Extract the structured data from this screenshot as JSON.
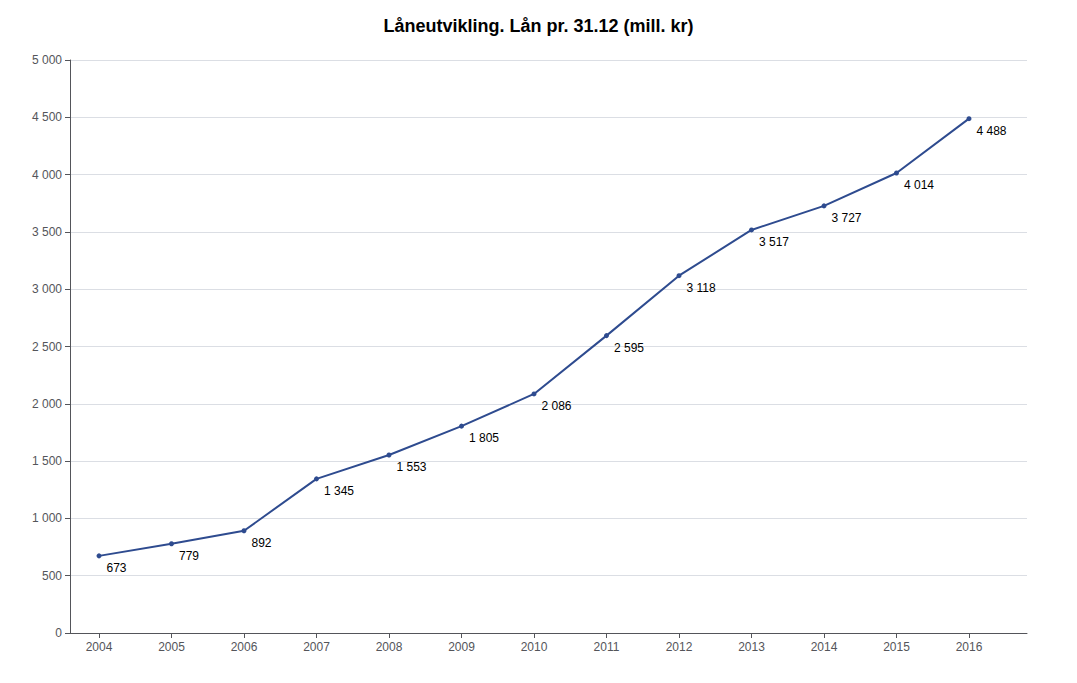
{
  "chart_data": {
    "type": "line",
    "title": "Låneutvikling. Lån pr. 31.12 (mill. kr)",
    "x": [
      2004,
      2005,
      2006,
      2007,
      2008,
      2009,
      2010,
      2011,
      2012,
      2013,
      2014,
      2015,
      2016
    ],
    "values": [
      673,
      779,
      892,
      1345,
      1553,
      1805,
      2086,
      2595,
      3118,
      3517,
      3727,
      4014,
      4488
    ],
    "value_labels": [
      "673",
      "779",
      "892",
      "1 345",
      "1 553",
      "1 805",
      "2 086",
      "2 595",
      "3 118",
      "3 517",
      "3 727",
      "4 014",
      "4 488"
    ],
    "data_labels": true,
    "color": "#2E4B8F",
    "xlim": [
      2003.6,
      2016.8
    ],
    "xticks": [
      2004,
      2005,
      2006,
      2007,
      2008,
      2009,
      2010,
      2011,
      2012,
      2013,
      2014,
      2015,
      2016
    ],
    "ylim": [
      0,
      5000
    ],
    "yticks": [
      0,
      500,
      {
        "value": 1000,
        "label": "1 000"
      },
      {
        "value": 1500,
        "label": "1 500"
      },
      {
        "value": 2000,
        "label": "2 000"
      },
      {
        "value": 2500,
        "label": "2 500"
      },
      {
        "value": 3000,
        "label": "3 000"
      },
      {
        "value": 3500,
        "label": "3 500"
      },
      {
        "value": 4000,
        "label": "4 000"
      },
      {
        "value": 4500,
        "label": "4 500"
      },
      {
        "value": 5000,
        "label": "5 000"
      }
    ],
    "grid": true
  }
}
